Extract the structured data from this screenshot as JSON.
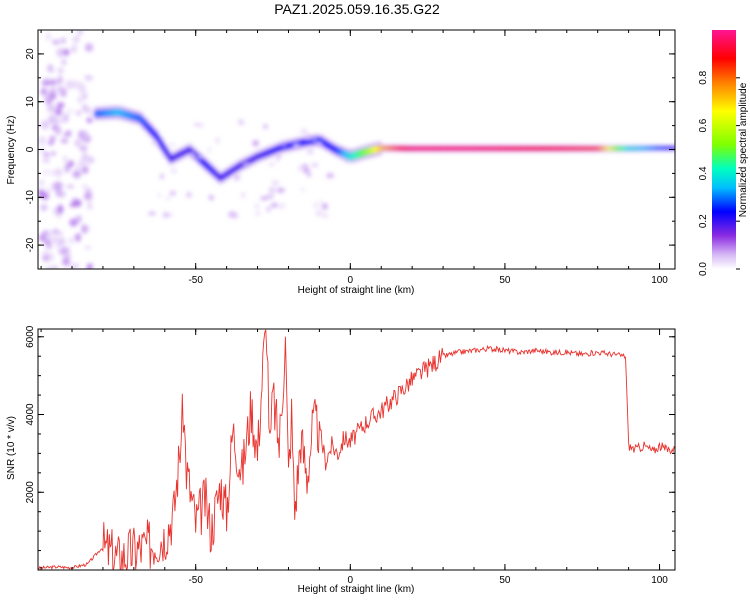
{
  "title": "PAZ1.2025.059.16.35.G22",
  "colors": {
    "snr_line": "#e8332e",
    "bg": "#ffffff"
  },
  "chart_data": [
    {
      "type": "heatmap",
      "title": "PAZ1.2025.059.16.35.G22",
      "xlabel": "Height of straight line (km)",
      "ylabel": "Frequency (Hz)",
      "xlim": [
        -101,
        105
      ],
      "ylim": [
        -25,
        25
      ],
      "xticks": [
        -50,
        0,
        50,
        100
      ],
      "yticks": [
        -20,
        -10,
        0,
        10,
        20
      ],
      "colorbar": {
        "label": "Normalized spectral amplitude",
        "range": [
          0,
          1
        ],
        "ticks": [
          0.0,
          0.2,
          0.4,
          0.6,
          0.8
        ],
        "colormap": [
          "#ffffff",
          "#d6b8f5",
          "#8a2be2",
          "#0000ff",
          "#00bfff",
          "#00ffbf",
          "#7fff00",
          "#ffff00",
          "#ff7f00",
          "#ff0000",
          "#ff1493"
        ]
      },
      "ridge": [
        {
          "x": -82,
          "f": 7.5,
          "a": 0.35
        },
        {
          "x": -75,
          "f": 7.8,
          "a": 0.4
        },
        {
          "x": -68,
          "f": 6.5,
          "a": 0.35
        },
        {
          "x": -63,
          "f": 3.0,
          "a": 0.3
        },
        {
          "x": -58,
          "f": -2.0,
          "a": 0.25
        },
        {
          "x": -52,
          "f": 0.0,
          "a": 0.25
        },
        {
          "x": -47,
          "f": -3.0,
          "a": 0.3
        },
        {
          "x": -42,
          "f": -6.0,
          "a": 0.25
        },
        {
          "x": -36,
          "f": -3.5,
          "a": 0.25
        },
        {
          "x": -30,
          "f": -1.5,
          "a": 0.25
        },
        {
          "x": -22,
          "f": 0.5,
          "a": 0.28
        },
        {
          "x": -15,
          "f": 1.5,
          "a": 0.3
        },
        {
          "x": -10,
          "f": 2.0,
          "a": 0.32
        },
        {
          "x": -5,
          "f": 0.0,
          "a": 0.3
        },
        {
          "x": 0,
          "f": -1.5,
          "a": 0.45
        },
        {
          "x": 5,
          "f": -0.5,
          "a": 0.6
        },
        {
          "x": 10,
          "f": 0.3,
          "a": 0.75
        },
        {
          "x": 20,
          "f": 0.2,
          "a": 0.95
        },
        {
          "x": 40,
          "f": 0.2,
          "a": 0.95
        },
        {
          "x": 60,
          "f": 0.2,
          "a": 0.9
        },
        {
          "x": 80,
          "f": 0.2,
          "a": 0.85
        },
        {
          "x": 90,
          "f": 0.2,
          "a": 0.45
        },
        {
          "x": 100,
          "f": 0.3,
          "a": 0.35
        },
        {
          "x": 105,
          "f": 0.3,
          "a": 0.3
        }
      ]
    },
    {
      "type": "line",
      "xlabel": "Height of straight line (km)",
      "ylabel": "SNR (10 * v/v)",
      "xlim": [
        -101,
        105
      ],
      "ylim": [
        0,
        6200
      ],
      "xticks": [
        -50,
        0,
        50,
        100
      ],
      "yticks": [
        2000,
        4000,
        6000
      ],
      "series": [
        {
          "x": [
            -101,
            -95,
            -90,
            -85,
            -80,
            -75,
            -70,
            -65,
            -60,
            -57,
            -55,
            -54,
            -53,
            -50,
            -47,
            -45,
            -42,
            -40,
            -38,
            -35,
            -32,
            -30,
            -28,
            -27,
            -26,
            -25,
            -23,
            -21,
            -20,
            -19,
            -18,
            -16,
            -14,
            -12,
            -10,
            -8,
            -6,
            -4,
            -2,
            0,
            5,
            10,
            15,
            20,
            25,
            30,
            35,
            40,
            45,
            50,
            55,
            60,
            65,
            70,
            75,
            80,
            85,
            89,
            90,
            92,
            95,
            98,
            100,
            102,
            105
          ],
          "values": [
            50,
            80,
            60,
            150,
            600,
            300,
            500,
            650,
            900,
            1500,
            3200,
            4150,
            2600,
            1200,
            1800,
            1000,
            2200,
            1500,
            3600,
            2500,
            4200,
            3000,
            5600,
            6200,
            3000,
            4500,
            3200,
            5900,
            2400,
            4000,
            1500,
            3400,
            2400,
            3800,
            3600,
            2800,
            3200,
            3000,
            3400,
            3300,
            3800,
            4100,
            4500,
            4900,
            5200,
            5500,
            5600,
            5650,
            5700,
            5650,
            5600,
            5650,
            5600,
            5600,
            5550,
            5600,
            5550,
            5500,
            3200,
            3100,
            3200,
            3050,
            3200,
            3100,
            3100
          ]
        }
      ]
    }
  ]
}
